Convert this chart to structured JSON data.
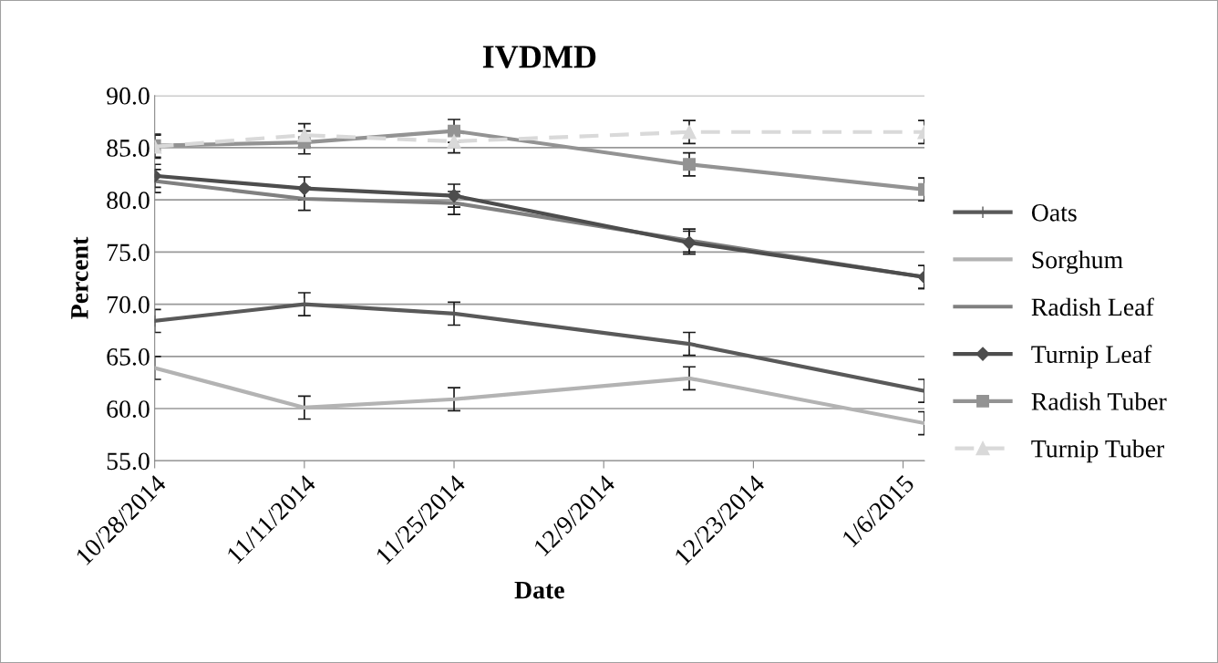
{
  "chart_data": {
    "type": "line",
    "title": "IVDMD",
    "xlabel": "Date",
    "ylabel": "Percent",
    "x": [
      "2014-10-28",
      "2014-11-11",
      "2014-11-25",
      "2014-12-17",
      "2015-01-08"
    ],
    "xlim": [
      "2014-10-28",
      "2015-01-08"
    ],
    "xticks": [
      {
        "value": "2014-10-28",
        "label": "10/28/2014"
      },
      {
        "value": "2014-11-11",
        "label": "11/11/2014"
      },
      {
        "value": "2014-11-25",
        "label": "11/25/2014"
      },
      {
        "value": "2014-12-09",
        "label": "12/9/2014"
      },
      {
        "value": "2014-12-23",
        "label": "12/23/2014"
      },
      {
        "value": "2015-01-06",
        "label": "1/6/2015"
      }
    ],
    "ylim": [
      55,
      90
    ],
    "yticks": [
      {
        "value": 55,
        "label": "55.0"
      },
      {
        "value": 60,
        "label": "60.0"
      },
      {
        "value": 65,
        "label": "65.0"
      },
      {
        "value": 70,
        "label": "70.0"
      },
      {
        "value": 75,
        "label": "75.0"
      },
      {
        "value": 80,
        "label": "80.0"
      },
      {
        "value": 85,
        "label": "85.0"
      },
      {
        "value": 90,
        "label": "90.0"
      }
    ],
    "grid": "y",
    "legend": "right",
    "series": [
      {
        "name": "Oats",
        "color": "#595959",
        "marker": "cross",
        "line_style": "solid",
        "values": [
          68.4,
          70.0,
          69.1,
          66.2,
          61.7
        ],
        "errors": [
          1.1,
          1.1,
          1.1,
          1.1,
          1.1
        ]
      },
      {
        "name": "Sorghum",
        "color": "#b3b3b3",
        "marker": "none",
        "line_style": "solid",
        "values": [
          63.9,
          60.1,
          60.9,
          62.9,
          58.6
        ],
        "errors": [
          1.1,
          1.1,
          1.1,
          1.1,
          1.1
        ]
      },
      {
        "name": "Radish Leaf",
        "color": "#808080",
        "marker": "none",
        "line_style": "solid",
        "values": [
          81.8,
          80.1,
          79.7,
          76.1,
          72.6
        ],
        "errors": [
          1.1,
          1.1,
          1.1,
          1.1,
          1.1
        ]
      },
      {
        "name": "Turnip Leaf",
        "color": "#4d4d4d",
        "marker": "diamond",
        "line_style": "solid",
        "values": [
          82.3,
          81.1,
          80.4,
          75.9,
          72.6
        ],
        "errors": [
          1.1,
          1.1,
          1.1,
          1.1,
          1.1
        ]
      },
      {
        "name": "Radish Tuber",
        "color": "#939393",
        "marker": "square",
        "line_style": "solid",
        "values": [
          85.2,
          85.5,
          86.6,
          83.4,
          81.0
        ],
        "errors": [
          1.1,
          1.1,
          1.1,
          1.1,
          1.1
        ]
      },
      {
        "name": "Turnip Tuber",
        "color": "#d9d9d9",
        "marker": "triangle",
        "line_style": "dashed",
        "values": [
          85.1,
          86.2,
          85.6,
          86.5,
          86.5
        ],
        "errors": [
          1.1,
          1.1,
          1.1,
          1.1,
          1.1
        ]
      }
    ]
  }
}
